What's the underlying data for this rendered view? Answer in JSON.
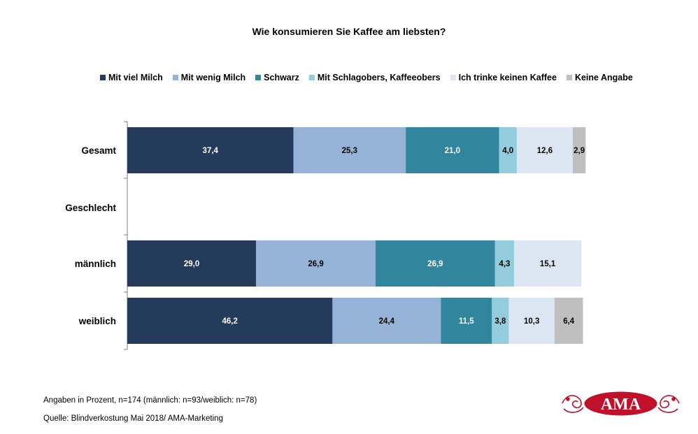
{
  "chart_data": {
    "type": "bar",
    "orientation": "horizontal",
    "stacked": true,
    "title": "Wie konsumieren Sie Kaffee am liebsten?",
    "categories": [
      "Gesamt",
      "Geschlecht",
      "männlich",
      "weiblich"
    ],
    "series": [
      {
        "name": "Mit viel Milch",
        "color": "#243b5c",
        "values": [
          37.4,
          null,
          29.0,
          46.2
        ],
        "labels": [
          "37,4",
          "",
          "29,0",
          "46,2"
        ]
      },
      {
        "name": "Mit wenig Milch",
        "color": "#95b3d7",
        "values": [
          25.3,
          null,
          26.9,
          24.4
        ],
        "labels": [
          "25,3",
          "",
          "26,9",
          "24,4"
        ]
      },
      {
        "name": "Schwarz",
        "color": "#31859c",
        "values": [
          21.0,
          null,
          26.9,
          11.5
        ],
        "labels": [
          "21,0",
          "",
          "26,9",
          "11,5"
        ]
      },
      {
        "name": "Mit Schlagobers, Kaffeeobers",
        "color": "#93cddd",
        "values": [
          4.0,
          null,
          4.3,
          3.8
        ],
        "labels": [
          "4,0",
          "",
          "4,3",
          "3,8"
        ]
      },
      {
        "name": "Ich trinke keinen Kaffee",
        "color": "#dce6f2",
        "values": [
          12.6,
          null,
          15.1,
          10.3
        ],
        "labels": [
          "12,6",
          "",
          "15,1",
          "10,3"
        ]
      },
      {
        "name": "Keine Angabe",
        "color": "#bfbfbf",
        "values": [
          2.9,
          null,
          null,
          6.4
        ],
        "labels": [
          "2,9",
          "",
          "",
          "6,4"
        ]
      }
    ],
    "xlim": [
      0,
      100
    ],
    "legend_position": "top",
    "grid": false
  },
  "footnote": "Angaben in Prozent, n=174 (männlich: n=93/weiblich: n=78)",
  "source": "Quelle: Blindverkostung Mai 2018/ AMA-Marketing",
  "logo": {
    "text": "AMA",
    "color": "#c0102a"
  }
}
